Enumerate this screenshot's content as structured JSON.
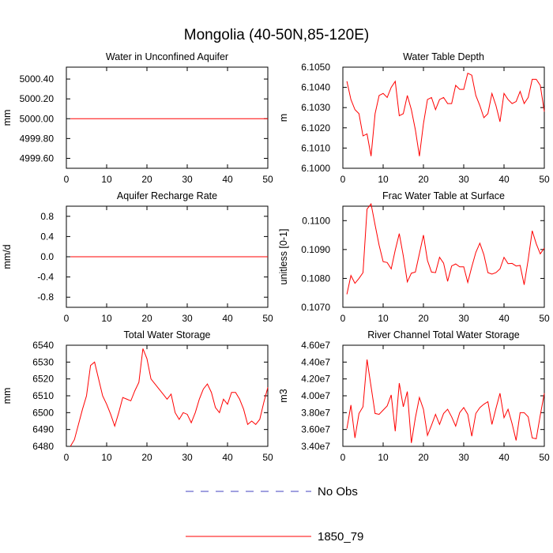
{
  "figure": {
    "title": "Mongolia (40-50N,85-120E)"
  },
  "colors": {
    "model": "#ff0000",
    "obs": "#4040c0",
    "axis": "#000000"
  },
  "legend": {
    "entries": [
      {
        "label": "No Obs",
        "style": "dashed",
        "color": "#4040c0"
      },
      {
        "label": "1850_79",
        "style": "solid",
        "color": "#ff0000"
      }
    ]
  },
  "chart_data": [
    {
      "type": "line",
      "title": "Water in Unconfined Aquifer",
      "ylabel": "mm",
      "xlim": [
        0,
        50
      ],
      "ylim": [
        4999.5,
        5000.52
      ],
      "xticks": [
        0,
        10,
        20,
        30,
        40,
        50
      ],
      "yticks": [
        4999.6,
        4999.8,
        5000.0,
        5000.2,
        5000.4
      ],
      "ytick_labels": [
        "4999.60",
        "4999.80",
        "5000.00",
        "5000.20",
        "5000.40"
      ],
      "series": [
        {
          "x": [
            1,
            50
          ],
          "values": [
            5000.0,
            5000.0
          ]
        }
      ]
    },
    {
      "type": "line",
      "title": "Water Table Depth",
      "ylabel": "m",
      "xlim": [
        0,
        50
      ],
      "ylim": [
        6.1,
        6.105
      ],
      "xticks": [
        0,
        10,
        20,
        30,
        40,
        50
      ],
      "yticks": [
        6.1,
        6.101,
        6.102,
        6.103,
        6.104,
        6.105
      ],
      "ytick_labels": [
        "6.1000",
        "6.1010",
        "6.1020",
        "6.1030",
        "6.1040",
        "6.1050"
      ],
      "series": [
        {
          "x": [
            1,
            2,
            3,
            4,
            5,
            6,
            7,
            8,
            9,
            10,
            11,
            12,
            13,
            14,
            15,
            16,
            17,
            18,
            19,
            20,
            21,
            22,
            23,
            24,
            25,
            26,
            27,
            28,
            29,
            30,
            31,
            32,
            33,
            34,
            35,
            36,
            37,
            38,
            39,
            40,
            41,
            42,
            43,
            44,
            45,
            46,
            47,
            48,
            49,
            50
          ],
          "values": [
            6.1043,
            6.1034,
            6.1029,
            6.1027,
            6.1016,
            6.1017,
            6.1006,
            6.1027,
            6.1036,
            6.1037,
            6.1035,
            6.104,
            6.1043,
            6.1026,
            6.1027,
            6.1036,
            6.1029,
            6.1019,
            6.1006,
            6.1022,
            6.1034,
            6.1035,
            6.1029,
            6.1034,
            6.1035,
            6.1032,
            6.1032,
            6.1041,
            6.1039,
            6.1039,
            6.1047,
            6.1046,
            6.1036,
            6.1031,
            6.1025,
            6.1027,
            6.1037,
            6.1031,
            6.1023,
            6.1037,
            6.1034,
            6.1032,
            6.1033,
            6.1038,
            6.1032,
            6.1035,
            6.1044,
            6.1044,
            6.1041,
            6.1028
          ]
        }
      ]
    },
    {
      "type": "line",
      "title": "Aquifer Recharge Rate",
      "ylabel": "mm/d",
      "xlim": [
        0,
        50
      ],
      "ylim": [
        -1.0,
        1.0
      ],
      "xticks": [
        0,
        10,
        20,
        30,
        40,
        50
      ],
      "yticks": [
        -0.8,
        -0.4,
        0.0,
        0.4,
        0.8
      ],
      "ytick_labels": [
        "-0.8",
        "-0.4",
        "0.0",
        "0.4",
        "0.8"
      ],
      "series": [
        {
          "x": [
            1,
            50
          ],
          "values": [
            0.0,
            0.0
          ]
        }
      ]
    },
    {
      "type": "line",
      "title": "Frac Water Table at Surface",
      "ylabel": "unitless [0-1]",
      "xlim": [
        0,
        50
      ],
      "ylim": [
        0.107,
        0.1105
      ],
      "xticks": [
        0,
        10,
        20,
        30,
        40,
        50
      ],
      "yticks": [
        0.107,
        0.108,
        0.109,
        0.11
      ],
      "ytick_labels": [
        "0.1070",
        "0.1080",
        "0.1090",
        "0.1100"
      ],
      "series": [
        {
          "x": [
            1,
            2,
            3,
            4,
            5,
            6,
            7,
            8,
            9,
            10,
            11,
            12,
            13,
            14,
            15,
            16,
            17,
            18,
            19,
            20,
            21,
            22,
            23,
            24,
            25,
            26,
            27,
            28,
            29,
            30,
            31,
            32,
            33,
            34,
            35,
            36,
            37,
            38,
            39,
            40,
            41,
            42,
            43,
            44,
            45,
            46,
            47,
            48,
            49,
            50
          ],
          "values": [
            0.10745,
            0.1081,
            0.10783,
            0.108,
            0.1082,
            0.1104,
            0.11058,
            0.10985,
            0.10915,
            0.10858,
            0.10855,
            0.10833,
            0.10898,
            0.10955,
            0.10878,
            0.10788,
            0.10818,
            0.10822,
            0.10886,
            0.1095,
            0.10862,
            0.10822,
            0.1082,
            0.10873,
            0.10853,
            0.1079,
            0.10843,
            0.1085,
            0.1084,
            0.1084,
            0.10786,
            0.1084,
            0.1089,
            0.10922,
            0.10882,
            0.1082,
            0.10815,
            0.1082,
            0.10833,
            0.10873,
            0.10851,
            0.10852,
            0.10843,
            0.10845,
            0.10778,
            0.10865,
            0.10965,
            0.1092,
            0.10885,
            0.10905
          ]
        }
      ]
    },
    {
      "type": "line",
      "title": "Total Water Storage",
      "ylabel": "mm",
      "xlim": [
        0,
        50
      ],
      "ylim": [
        6480,
        6540
      ],
      "xticks": [
        0,
        10,
        20,
        30,
        40,
        50
      ],
      "yticks": [
        6480,
        6490,
        6500,
        6510,
        6520,
        6530,
        6540
      ],
      "ytick_labels": [
        "6480",
        "6490",
        "6500",
        "6510",
        "6520",
        "6530",
        "6540"
      ],
      "series": [
        {
          "x": [
            1,
            2,
            3,
            4,
            5,
            6,
            7,
            8,
            9,
            10,
            11,
            12,
            13,
            14,
            15,
            16,
            17,
            18,
            19,
            20,
            21,
            22,
            23,
            24,
            25,
            26,
            27,
            28,
            29,
            30,
            31,
            32,
            33,
            34,
            35,
            36,
            37,
            38,
            39,
            40,
            41,
            42,
            43,
            44,
            45,
            46,
            47,
            48,
            49,
            50
          ],
          "values": [
            6480,
            6484,
            6493,
            6502,
            6510,
            6528,
            6530,
            6520,
            6510,
            6505,
            6499,
            6492,
            6500,
            6509,
            6508,
            6507,
            6513,
            6518,
            6538,
            6532,
            6520,
            6517,
            6514,
            6511,
            6508,
            6511,
            6500,
            6496,
            6500,
            6499,
            6494,
            6500,
            6508,
            6514,
            6517,
            6512,
            6503,
            6500,
            6508,
            6505,
            6512,
            6512,
            6508,
            6502,
            6493,
            6495,
            6493,
            6496,
            6506,
            6515
          ]
        }
      ]
    },
    {
      "type": "line",
      "title": "River Channel Total Water Storage",
      "ylabel": "m3",
      "xlim": [
        0,
        50
      ],
      "ylim": [
        34000000,
        46000000
      ],
      "xticks": [
        0,
        10,
        20,
        30,
        40,
        50
      ],
      "yticks": [
        34000000,
        36000000,
        38000000,
        40000000,
        42000000,
        44000000,
        46000000
      ],
      "ytick_labels": [
        "3.40e7",
        "3.60e7",
        "3.80e7",
        "4.00e7",
        "4.20e7",
        "4.40e7",
        "4.60e7"
      ],
      "series": [
        {
          "x": [
            1,
            2,
            3,
            4,
            5,
            6,
            7,
            8,
            9,
            10,
            11,
            12,
            13,
            14,
            15,
            16,
            17,
            18,
            19,
            20,
            21,
            22,
            23,
            24,
            25,
            26,
            27,
            28,
            29,
            30,
            31,
            32,
            33,
            34,
            35,
            36,
            37,
            38,
            39,
            40,
            41,
            42,
            43,
            44,
            45,
            46,
            47,
            48,
            49,
            50
          ],
          "values": [
            36100000,
            38900000,
            35000000,
            37900000,
            38700000,
            44300000,
            41100000,
            37900000,
            37800000,
            38300000,
            38800000,
            40100000,
            35800000,
            41500000,
            38700000,
            40500000,
            34400000,
            37400000,
            39800000,
            38400000,
            35300000,
            36500000,
            37800000,
            36600000,
            37900000,
            38400000,
            37500000,
            36400000,
            38000000,
            38600000,
            37800000,
            35200000,
            37900000,
            38600000,
            39000000,
            39300000,
            36600000,
            38500000,
            40300000,
            37400000,
            38400000,
            36700000,
            34700000,
            38000000,
            38000000,
            37500000,
            35000000,
            34900000,
            37700000,
            40300000
          ]
        }
      ]
    }
  ]
}
